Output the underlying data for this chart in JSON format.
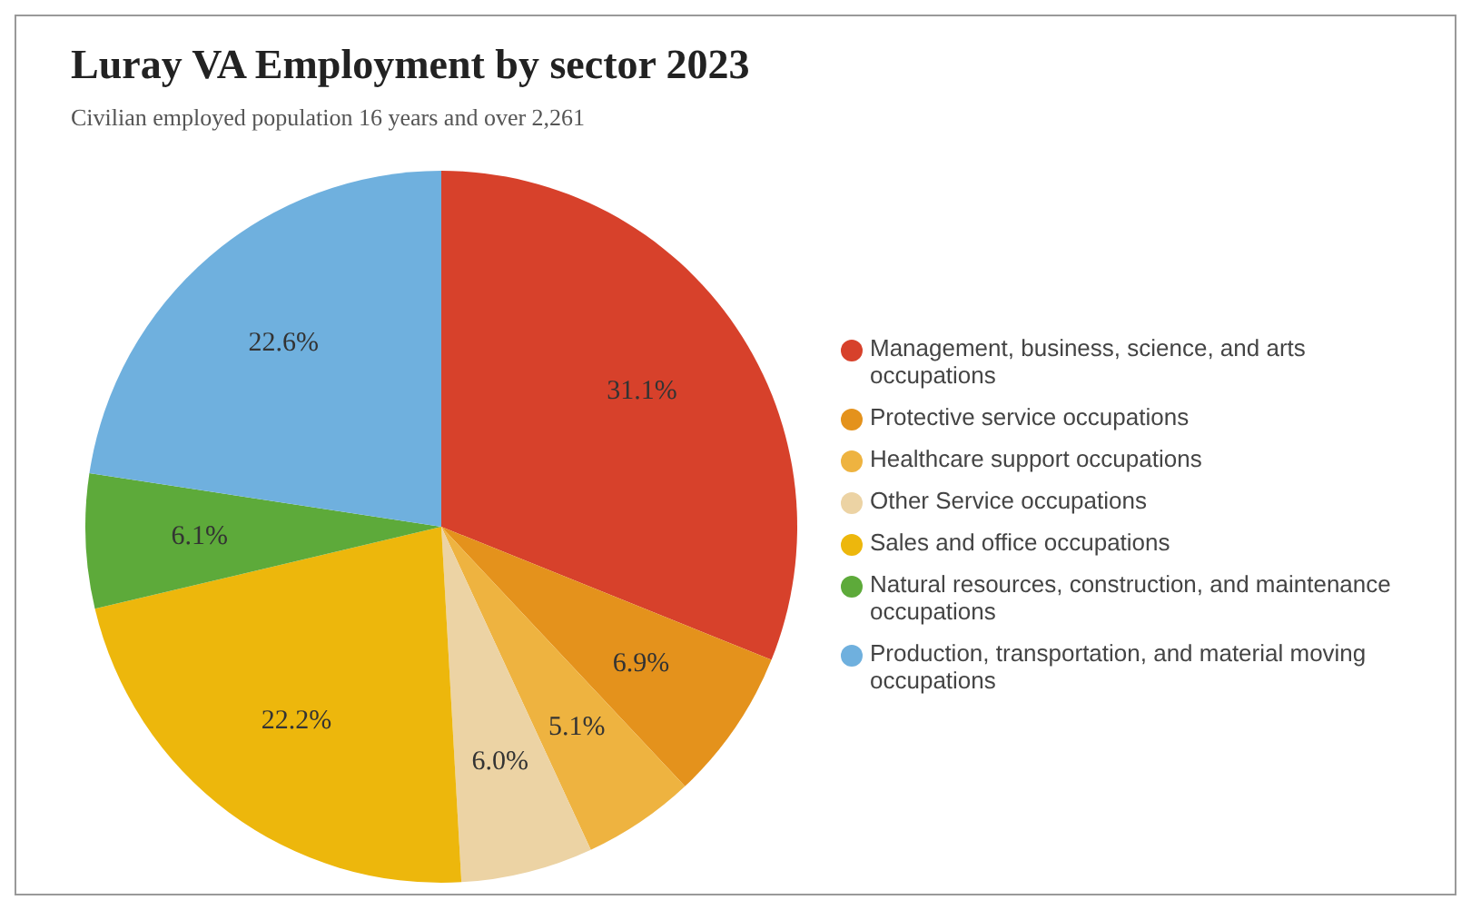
{
  "chart_data": {
    "type": "pie",
    "title": "Luray VA Employment by sector 2023",
    "subtitle": "Civilian employed population 16 years and over 2,261",
    "categories": [
      "Management, business, science, and arts occupations",
      "Protective service occupations",
      "Healthcare support occupations",
      "Other Service occupations",
      "Sales and office occupations",
      "Natural resources, construction, and maintenance occupations",
      "Production, transportation, and material moving occupations"
    ],
    "values": [
      31.1,
      6.9,
      5.1,
      6.0,
      22.2,
      6.1,
      22.6
    ],
    "value_labels": [
      "31.1%",
      "6.9%",
      "5.1%",
      "6.0%",
      "22.2%",
      "6.1%",
      "22.6%"
    ],
    "colors": [
      "#d7412b",
      "#e4921c",
      "#eeb340",
      "#ecd3a4",
      "#edb70c",
      "#5daa3a",
      "#6fb0de"
    ],
    "legend": "right"
  }
}
